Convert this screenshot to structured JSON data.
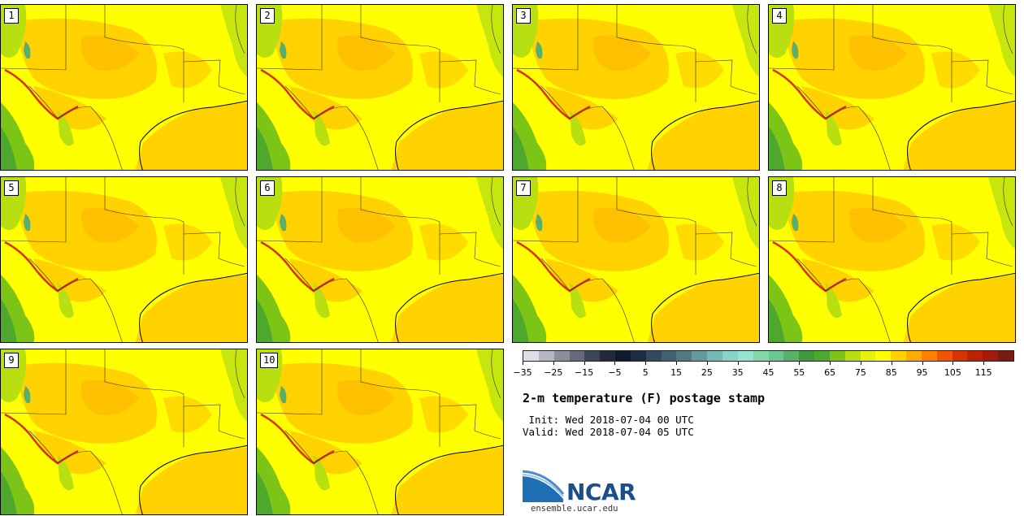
{
  "panels": [
    {
      "label": "1"
    },
    {
      "label": "2"
    },
    {
      "label": "3"
    },
    {
      "label": "4"
    },
    {
      "label": "5"
    },
    {
      "label": "6"
    },
    {
      "label": "7"
    },
    {
      "label": "8"
    },
    {
      "label": "9"
    },
    {
      "label": "10"
    }
  ],
  "colorbar": {
    "ticks": [
      "−35",
      "−25",
      "−15",
      "−5",
      "5",
      "15",
      "25",
      "35",
      "45",
      "55",
      "65",
      "75",
      "85",
      "95",
      "105",
      "115"
    ],
    "tick_values": [
      -35,
      -25,
      -15,
      -5,
      5,
      15,
      25,
      35,
      45,
      55,
      65,
      75,
      85,
      95,
      105,
      115
    ],
    "min": -35,
    "max": 120,
    "step": 5,
    "colors": [
      "#dcdde6",
      "#b4b7c2",
      "#8a8f9c",
      "#656b7a",
      "#3c4457",
      "#23293a",
      "#0f1a2c",
      "#1d2c40",
      "#334a5e",
      "#42606e",
      "#517a82",
      "#649a9a",
      "#77b8b4",
      "#8ad3c9",
      "#97e3d2",
      "#82d6a8",
      "#6cc690",
      "#58b06a",
      "#3f9a3c",
      "#4ea82e",
      "#7cc416",
      "#b8e011",
      "#e4f20c",
      "#ffff00",
      "#ffd200",
      "#ffab00",
      "#ff8000",
      "#f25500",
      "#d73300",
      "#bf2200",
      "#a51a0a",
      "#7a1a12"
    ]
  },
  "title": "2-m temperature (F) postage stamp",
  "init": " Init: Wed 2018-07-04 00 UTC",
  "valid": "Valid: Wed 2018-07-04 05 UTC",
  "logo_text": "NCAR",
  "site": "ensemble.ucar.edu"
}
